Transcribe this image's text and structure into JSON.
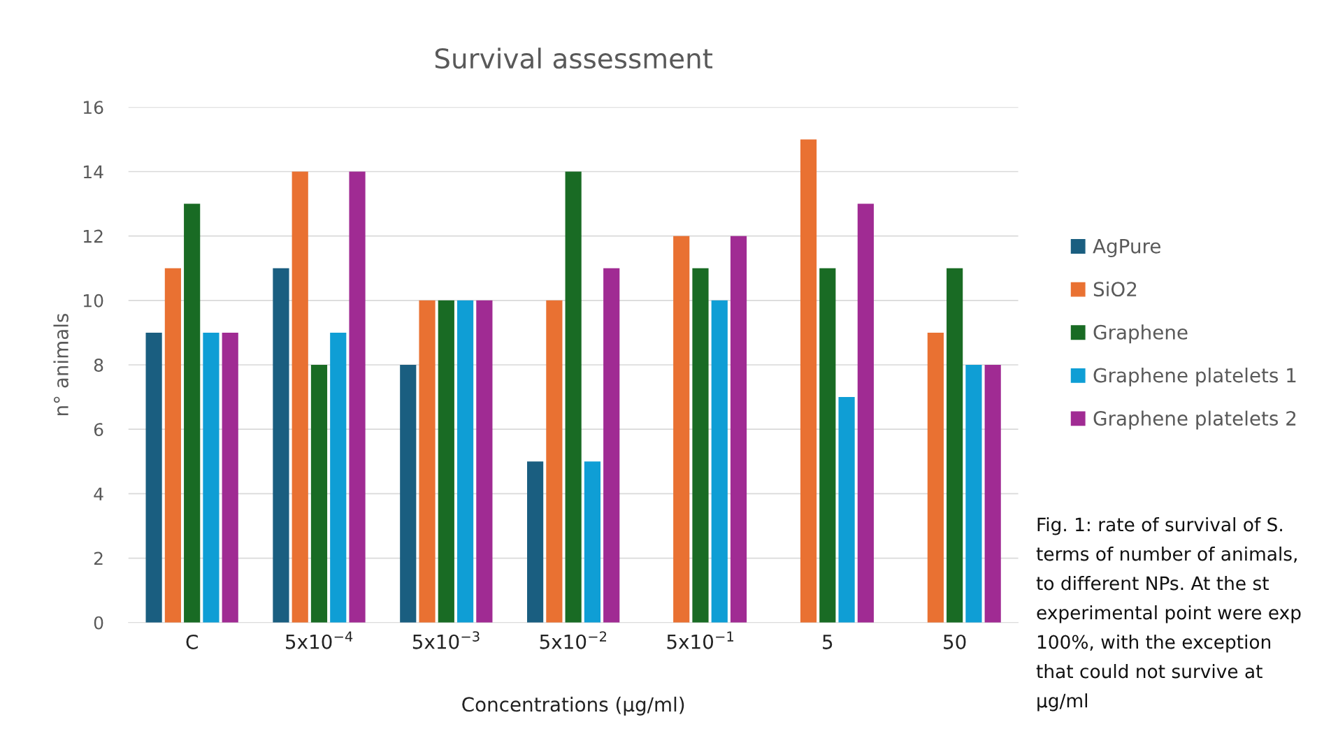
{
  "chart_data": {
    "type": "bar",
    "title": "Survival assessment",
    "xlabel": "Concentrations (µg/ml)",
    "ylabel": "n° animals",
    "categories": [
      "C",
      "5x10$^{−4}$",
      "5x10$^{−3}$",
      "5x10$^{−2}$",
      "5x10$^{−1}$",
      "5",
      "50"
    ],
    "series": [
      {
        "name": "AgPure",
        "color": "#1a5e80",
        "values": [
          9,
          11,
          8,
          5,
          0,
          0,
          0
        ]
      },
      {
        "name": "SiO2",
        "color": "#e97132",
        "values": [
          11,
          14,
          10,
          10,
          12,
          15,
          9
        ]
      },
      {
        "name": "Graphene",
        "color": "#196b24",
        "values": [
          13,
          8,
          10,
          14,
          11,
          11,
          11
        ]
      },
      {
        "name": "Graphene platelets 1",
        "color": "#0f9ed5",
        "values": [
          9,
          9,
          10,
          5,
          10,
          7,
          8
        ]
      },
      {
        "name": "Graphene platelets 2",
        "color": "#a02b93",
        "values": [
          9,
          14,
          10,
          11,
          12,
          13,
          8
        ]
      }
    ],
    "ylim": [
      0,
      16
    ],
    "yticks": [
      0,
      2,
      4,
      6,
      8,
      10,
      12,
      14,
      16
    ],
    "grid": "y",
    "legend": "right",
    "annotations": [
      "Fig. 1: rate of survival of S.",
      "terms of number of animals,",
      "to different NPs. At the st",
      "experimental point were exp",
      "100%, with the exception",
      "that could not survive at",
      "µg/ml"
    ]
  }
}
